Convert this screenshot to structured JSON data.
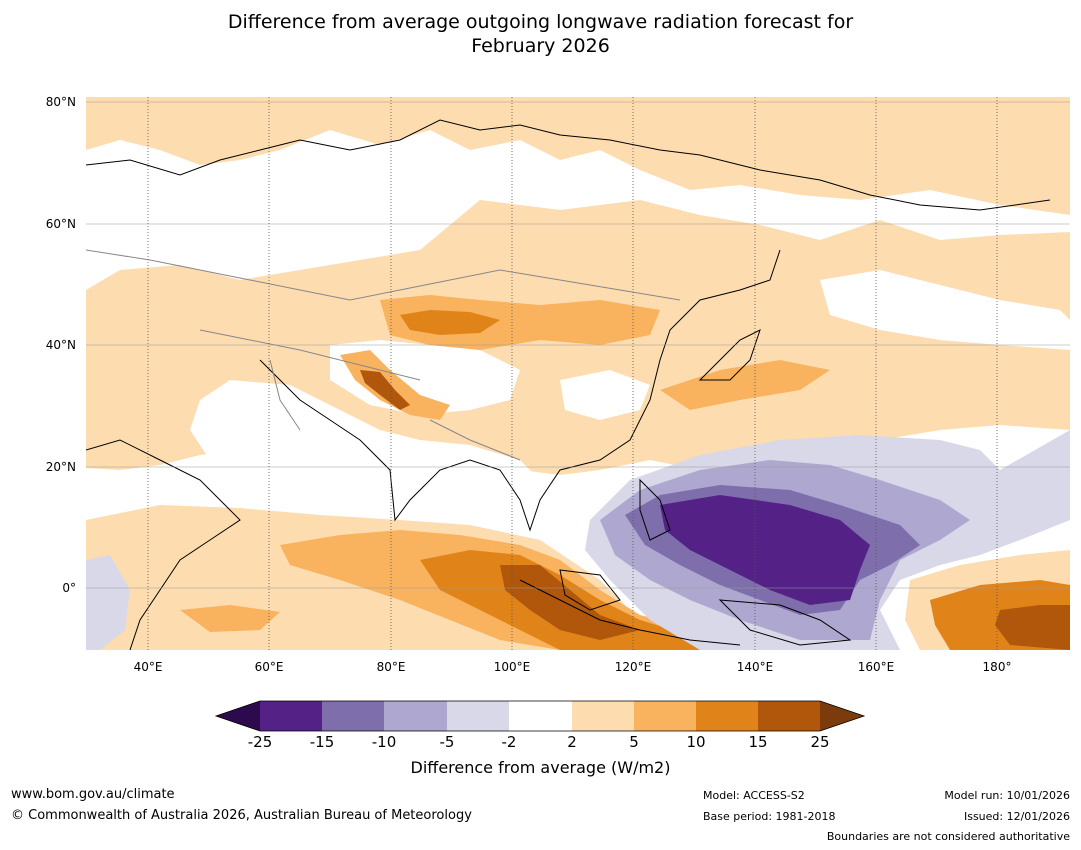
{
  "title": {
    "line1": "Difference from average outgoing longwave radiation forecast for",
    "line2": "February 2026"
  },
  "map": {
    "lat_labels": [
      "80°N",
      "60°N",
      "40°N",
      "20°N",
      "0°"
    ],
    "lon_labels": [
      "40°E",
      "60°E",
      "80°E",
      "100°E",
      "120°E",
      "140°E",
      "160°E",
      "180°"
    ],
    "lon_range": [
      30,
      190
    ],
    "lat_range": [
      -10,
      80
    ]
  },
  "colorbar": {
    "ticks": [
      "-25",
      "-15",
      "-10",
      "-5",
      "-2",
      "2",
      "5",
      "10",
      "15",
      "25"
    ],
    "colors": [
      "#2d0a4e",
      "#542286",
      "#7e6eab",
      "#aea7cf",
      "#d8d8e9",
      "#ffffff",
      "#fddcb0",
      "#f9b25e",
      "#e0841a",
      "#b0570b",
      "#7b3b0c"
    ],
    "label": "Difference from average (W/m2)"
  },
  "footer": {
    "url": "www.bom.gov.au/climate",
    "copyright": "© Commonwealth of Australia 2026, Australian Bureau of Meteorology",
    "model": "Model: ACCESS-S2",
    "base_period": "Base period: 1981-2018",
    "model_run": "Model run: 10/01/2026",
    "issued": "Issued: 12/01/2026",
    "disclaimer": "Boundaries are not considered authoritative"
  }
}
